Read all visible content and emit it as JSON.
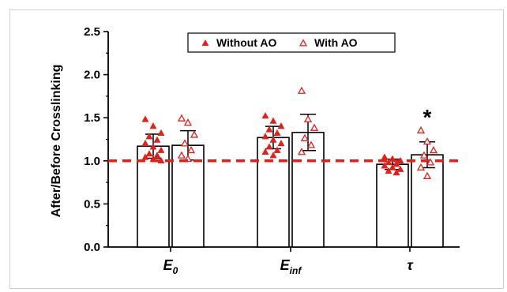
{
  "chart_data": {
    "type": "bar",
    "title": "",
    "xlabel": "",
    "ylabel": "After/Before Crosslinking",
    "ylim": [
      0.0,
      2.5
    ],
    "yticks": [
      "0.0",
      "0.5",
      "1.0",
      "1.5",
      "2.0",
      "2.5"
    ],
    "categories": [
      {
        "base": "E",
        "sub": "0"
      },
      {
        "base": "E",
        "sub": "inf"
      },
      {
        "base": "τ",
        "sub": ""
      }
    ],
    "reference_line": {
      "y": 1.0,
      "color": "#e0201b",
      "style": "dashed"
    },
    "legend": {
      "placement": "top-center",
      "border": true
    },
    "series": [
      {
        "name": "Without AO",
        "marker": "filled-triangle",
        "color": "#e0201b",
        "values": [
          1.17,
          1.27,
          0.96
        ],
        "errors": [
          0.14,
          0.13,
          0.06
        ],
        "points": [
          [
            1.48,
            1.4,
            1.32,
            1.28,
            1.24,
            1.2,
            1.16,
            1.12,
            1.08,
            1.06,
            1.04,
            1.02,
            1.0
          ],
          [
            1.52,
            1.46,
            1.4,
            1.36,
            1.32,
            1.28,
            1.24,
            1.2,
            1.16,
            1.12,
            1.1,
            1.06
          ],
          [
            1.04,
            1.02,
            1.0,
            0.98,
            0.96,
            0.94,
            0.92,
            0.9,
            0.88,
            0.86
          ]
        ]
      },
      {
        "name": "With AO",
        "marker": "open-triangle",
        "color": "#e0201b",
        "values": [
          1.18,
          1.33,
          1.07
        ],
        "errors": [
          0.17,
          0.21,
          0.15
        ],
        "points": [
          [
            1.49,
            1.44,
            1.3,
            1.2,
            1.12,
            1.06,
            1.02
          ],
          [
            1.81,
            1.48,
            1.38,
            1.26,
            1.18,
            1.1
          ],
          [
            1.35,
            1.22,
            1.12,
            1.06,
            0.98,
            0.92,
            0.82
          ]
        ]
      }
    ],
    "annotations": [
      {
        "category": 2,
        "series": 1,
        "text": "*"
      }
    ]
  }
}
